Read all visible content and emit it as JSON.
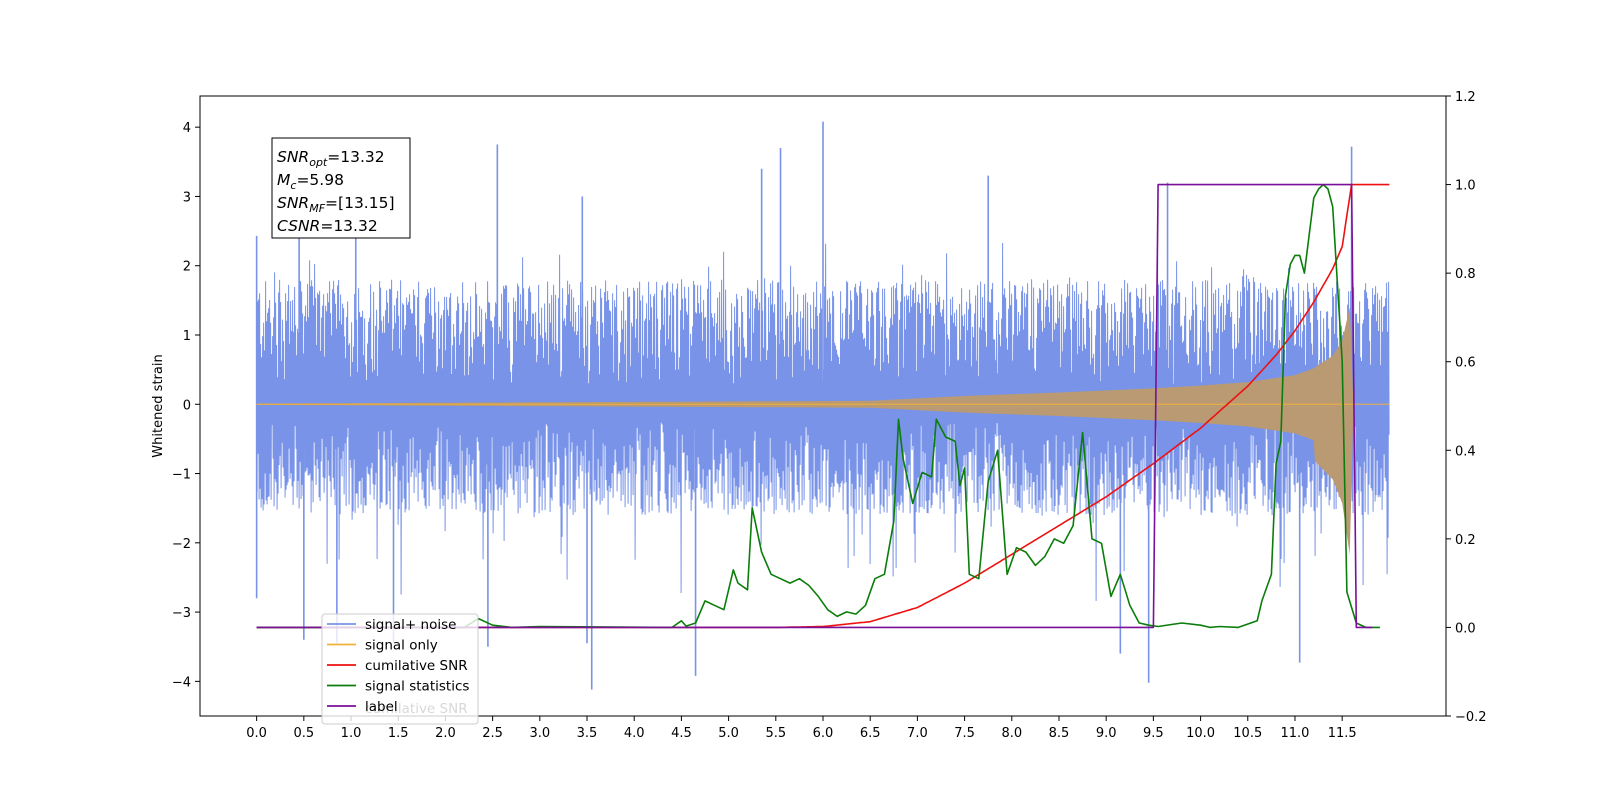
{
  "chart_data": {
    "type": "line",
    "ylabel_left": "Whitened strain",
    "x_range": [
      -0.6,
      12.6
    ],
    "y_left_range": [
      -4.5,
      4.45
    ],
    "y_right_range": [
      -0.2,
      1.2
    ],
    "x_ticks": [
      "0.0",
      "0.5",
      "1.0",
      "1.5",
      "2.0",
      "2.5",
      "3.0",
      "3.5",
      "4.0",
      "4.5",
      "5.0",
      "5.5",
      "6.0",
      "6.5",
      "7.0",
      "7.5",
      "8.0",
      "8.5",
      "9.0",
      "9.5",
      "10.0",
      "10.5",
      "11.0",
      "11.5"
    ],
    "y_left_ticks": [
      "4",
      "3",
      "2",
      "1",
      "0",
      "−1",
      "−2",
      "−3",
      "−4"
    ],
    "y_right_ticks": [
      "1.2",
      "1.0",
      "0.8",
      "0.6",
      "0.4",
      "0.2",
      "0.0",
      "−0.2"
    ],
    "info_box": {
      "snr_opt_base": "SNR",
      "snr_opt_sub": "opt",
      "snr_opt_value": "=13.32",
      "mc_base": "M",
      "mc_sub": "c",
      "mc_value": "=5.98",
      "snr_mf_base": "SNR",
      "snr_mf_sub": "MF",
      "snr_mf_value": "=[13.15]",
      "csnr_base": "CSNR",
      "csnr_value": "=13.32"
    },
    "legend": {
      "placement": "lower-left",
      "entries": [
        "signal+ noise",
        "signal only",
        "cumilative SNR",
        "signal statistics",
        "label"
      ],
      "ghost_text": "cumilative SNR"
    },
    "series": [
      {
        "name": "signal+ noise",
        "axis": "left",
        "color": "#7893e8",
        "kind": "noise",
        "x_start": 0.0,
        "x_end": 12.0,
        "upper_envelope": [
          1.8,
          2.2
        ],
        "lower_envelope": [
          -1.6,
          -2.3
        ],
        "peaks": [
          [
            0.0,
            2.43
          ],
          [
            0.45,
            2.95
          ],
          [
            1.05,
            2.75
          ],
          [
            2.55,
            3.75
          ],
          [
            3.45,
            3.0
          ],
          [
            5.35,
            3.4
          ],
          [
            5.55,
            3.7
          ],
          [
            6.0,
            4.08
          ],
          [
            7.75,
            3.3
          ],
          [
            9.65,
            3.2
          ],
          [
            11.6,
            3.72
          ]
        ],
        "troughs": [
          [
            0.0,
            -2.8
          ],
          [
            0.5,
            -3.4
          ],
          [
            0.85,
            -3.45
          ],
          [
            1.45,
            -3.45
          ],
          [
            2.45,
            -3.5
          ],
          [
            3.5,
            -3.45
          ],
          [
            3.55,
            -4.12
          ],
          [
            4.65,
            -3.92
          ],
          [
            9.15,
            -3.6
          ],
          [
            9.45,
            -4.02
          ],
          [
            11.05,
            -3.73
          ]
        ]
      },
      {
        "name": "signal only",
        "axis": "left",
        "color": "#f2b13a",
        "fill": "#b99a72",
        "kind": "chirp",
        "x": [
          0.0,
          6.5,
          7.5,
          8.5,
          9.5,
          10.0,
          10.5,
          11.0,
          11.2,
          11.4,
          11.5,
          11.58,
          11.62,
          12.0
        ],
        "amplitude": [
          0.01,
          0.05,
          0.12,
          0.17,
          0.23,
          0.27,
          0.32,
          0.42,
          0.52,
          0.7,
          0.92,
          1.4,
          0.0,
          0.0
        ]
      },
      {
        "name": "cumilative SNR",
        "axis": "right",
        "color": "#ee1111",
        "x": [
          0.0,
          5.5,
          6.0,
          6.5,
          7.0,
          7.5,
          8.0,
          8.5,
          9.0,
          9.5,
          10.0,
          10.5,
          10.8,
          11.0,
          11.2,
          11.4,
          11.5,
          11.6,
          12.0
        ],
        "values": [
          0.0,
          0.0,
          0.002,
          0.013,
          0.045,
          0.1,
          0.165,
          0.23,
          0.295,
          0.37,
          0.45,
          0.545,
          0.615,
          0.67,
          0.735,
          0.81,
          0.86,
          1.0,
          1.0
        ]
      },
      {
        "name": "signal statistics",
        "axis": "right",
        "color": "#0b7d0b",
        "x": [
          0.0,
          2.2,
          2.35,
          2.5,
          2.7,
          3.0,
          4.4,
          4.5,
          4.55,
          4.65,
          4.75,
          4.85,
          4.95,
          5.05,
          5.1,
          5.2,
          5.25,
          5.35,
          5.45,
          5.55,
          5.65,
          5.75,
          5.85,
          5.95,
          6.05,
          6.15,
          6.25,
          6.35,
          6.45,
          6.55,
          6.65,
          6.75,
          6.8,
          6.85,
          6.9,
          6.95,
          7.05,
          7.15,
          7.2,
          7.3,
          7.4,
          7.45,
          7.5,
          7.55,
          7.65,
          7.75,
          7.85,
          7.95,
          8.05,
          8.15,
          8.25,
          8.35,
          8.45,
          8.55,
          8.65,
          8.75,
          8.85,
          8.95,
          9.05,
          9.15,
          9.2,
          9.25,
          9.35,
          9.45,
          9.55,
          9.8,
          10.0,
          10.1,
          10.2,
          10.4,
          10.6,
          10.65,
          10.75,
          10.8,
          10.85,
          10.9,
          10.95,
          11.0,
          11.05,
          11.1,
          11.2,
          11.25,
          11.3,
          11.35,
          11.4,
          11.5,
          11.55,
          11.65,
          11.75,
          11.8,
          11.9
        ],
        "values": [
          0.0,
          0.0,
          0.02,
          0.005,
          0.0,
          0.002,
          0.0,
          0.015,
          0.003,
          0.01,
          0.06,
          0.05,
          0.04,
          0.13,
          0.1,
          0.085,
          0.27,
          0.17,
          0.12,
          0.11,
          0.1,
          0.11,
          0.095,
          0.07,
          0.04,
          0.025,
          0.035,
          0.03,
          0.05,
          0.11,
          0.12,
          0.24,
          0.47,
          0.38,
          0.33,
          0.28,
          0.35,
          0.34,
          0.47,
          0.43,
          0.42,
          0.32,
          0.36,
          0.12,
          0.11,
          0.33,
          0.4,
          0.12,
          0.18,
          0.17,
          0.14,
          0.16,
          0.2,
          0.19,
          0.23,
          0.44,
          0.2,
          0.19,
          0.07,
          0.12,
          0.085,
          0.05,
          0.01,
          0.005,
          0.002,
          0.01,
          0.005,
          0.0,
          0.002,
          0.0,
          0.015,
          0.06,
          0.12,
          0.37,
          0.42,
          0.75,
          0.82,
          0.84,
          0.84,
          0.8,
          0.97,
          0.99,
          1.0,
          0.99,
          0.95,
          0.6,
          0.08,
          0.01,
          0.0,
          0.0,
          0.0
        ],
        "x_draw_start": 0.0,
        "x_draw_end": 11.9
      },
      {
        "name": "label",
        "axis": "right",
        "color": "#7a0f9a",
        "x": [
          0.0,
          9.45,
          9.5,
          9.55,
          11.6,
          11.65,
          11.75,
          11.82
        ],
        "values": [
          0.0,
          0.0,
          0.0,
          1.0,
          1.0,
          0.0,
          0.0,
          0.0
        ]
      }
    ]
  }
}
